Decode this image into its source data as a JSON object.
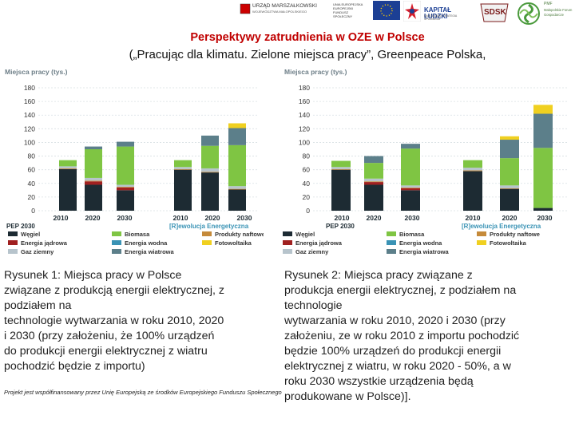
{
  "logos": {
    "left_logo_text": "URZĄD MARSZAŁKOWSKI",
    "left_logo_sub": "WOJEWÓDZTWA MAŁOPOLSKIEGO",
    "eu_text": "UNIA EUROPEJSKA EUROPEJSKI FUNDUSZ SPOŁECZNY",
    "kapital_text": "KAPITAŁ LUDZKI",
    "kapital_sub": "NARODOWA STRATEGIA SPÓJNOŚCI",
    "sdsk_text": "SDSK",
    "pmf_text": "PMF",
    "pmf_sub": "Małopolskie Forum Gospodarcze"
  },
  "title": "Perspektywy zatrudnienia w OZE w Polsce",
  "subtitle": "(„Pracując dla klimatu. Zielone miejsca pracy”, Greenpeace Polska,",
  "chart_data": [
    {
      "type": "bar",
      "title": "Miejsca pracy (tys.)",
      "stacked": true,
      "ylabel": "Miejsca pracy (tys.)",
      "ylim": [
        0,
        180
      ],
      "yticks": [
        "180",
        "160",
        "140",
        "120",
        "100",
        "80",
        "60",
        "40",
        "20",
        "0"
      ],
      "categories": [
        "2010",
        "2020",
        "2030"
      ],
      "group_labels": [
        "PEP 2030",
        "[R]ewolucja Energetyczna"
      ],
      "groups": [
        {
          "label": "PEP 2030",
          "bars": [
            {
              "year": "2010",
              "values": [
                61,
                0,
                1,
                3,
                9,
                0,
                0,
                0
              ]
            },
            {
              "year": "2020",
              "values": [
                38,
                5,
                1,
                4,
                42,
                0,
                4,
                0
              ]
            },
            {
              "year": "2030",
              "values": [
                30,
                4,
                1,
                3,
                56,
                0,
                7,
                0
              ]
            }
          ]
        },
        {
          "label": "[R]ewolucja Energetyczna",
          "bars": [
            {
              "year": "2010",
              "values": [
                60,
                0,
                1,
                3,
                10,
                0,
                0,
                0
              ]
            },
            {
              "year": "2020",
              "values": [
                56,
                0,
                1,
                5,
                33,
                0,
                15,
                0
              ]
            },
            {
              "year": "2030",
              "values": [
                31,
                0,
                1,
                4,
                60,
                0,
                25,
                7
              ]
            }
          ]
        }
      ],
      "series": [
        {
          "name": "Węgiel",
          "color": "#1d2b33"
        },
        {
          "name": "Energia jądrowa",
          "color": "#a02020"
        },
        {
          "name": "Produkty naftowe",
          "color": "#c58a3a"
        },
        {
          "name": "Gaz ziemny",
          "color": "#b7c4cc"
        },
        {
          "name": "Biomasa",
          "color": "#7fc543"
        },
        {
          "name": "Energia wodna",
          "color": "#3a93b5"
        },
        {
          "name": "Energia wiatrowa",
          "color": "#5c7f8a"
        },
        {
          "name": "Fotowoltaika",
          "color": "#f0d020"
        }
      ],
      "legend_order": [
        "Węgiel",
        "Energia jądrowa",
        "Gaz ziemny",
        "Biomasa",
        "Energia wodna",
        "Energia wiatrowa",
        "Produkty naftowe",
        "Fotowoltaika"
      ]
    },
    {
      "type": "bar",
      "title": "Miejsca pracy (tys.)",
      "stacked": true,
      "ylabel": "Miejsca pracy (tys.)",
      "ylim": [
        0,
        180
      ],
      "yticks": [
        "180",
        "160",
        "140",
        "120",
        "100",
        "80",
        "60",
        "40",
        "20",
        "0"
      ],
      "categories": [
        "2010",
        "2020",
        "2030"
      ],
      "group_labels": [
        "PEP 2030",
        "[R]ewolucja Energetyczna"
      ],
      "groups": [
        {
          "label": "PEP 2030",
          "bars": [
            {
              "year": "2010",
              "values": [
                60,
                0,
                1,
                3,
                9,
                0,
                0,
                0
              ]
            },
            {
              "year": "2020",
              "values": [
                38,
                4,
                1,
                4,
                23,
                0,
                10,
                0
              ]
            },
            {
              "year": "2030",
              "values": [
                30,
                3,
                1,
                3,
                54,
                0,
                7,
                0
              ]
            }
          ]
        },
        {
          "label": "[R]ewolucja Energetyczna",
          "bars": [
            {
              "year": "2010",
              "values": [
                58,
                0,
                1,
                4,
                11,
                0,
                0,
                0
              ]
            },
            {
              "year": "2020",
              "values": [
                32,
                0,
                1,
                4,
                40,
                0,
                27,
                5
              ]
            },
            {
              "year": "2030",
              "values": [
                4,
                0,
                0,
                0,
                88,
                0,
                50,
                13
              ]
            }
          ]
        }
      ],
      "series": [
        {
          "name": "Węgiel",
          "color": "#1d2b33"
        },
        {
          "name": "Energia jądrowa",
          "color": "#a02020"
        },
        {
          "name": "Produkty naftowe",
          "color": "#c58a3a"
        },
        {
          "name": "Gaz ziemny",
          "color": "#b7c4cc"
        },
        {
          "name": "Biomasa",
          "color": "#7fc543"
        },
        {
          "name": "Energia wodna",
          "color": "#3a93b5"
        },
        {
          "name": "Energia wiatrowa",
          "color": "#5c7f8a"
        },
        {
          "name": "Fotowoltaika",
          "color": "#f0d020"
        }
      ],
      "legend_order": [
        "Węgiel",
        "Energia jądrowa",
        "Gaz ziemny",
        "Biomasa",
        "Energia wodna",
        "Energia wiatrowa",
        "Produkty naftowe",
        "Fotowoltaika"
      ]
    }
  ],
  "captions": {
    "left_lines": [
      "Rysunek 1: Miejsca pracy w Polsce",
      "związane z produkcją energii elektrycznej, z",
      "podziałem na",
      "technologie wytwarzania w roku 2010, 2020",
      "i 2030 (przy założeniu, że 100% urządzeń",
      "do produkcji energii elektrycznej z wiatru",
      "pochodzić będzie z importu)"
    ],
    "right_lines": [
      "Rysunek 2: Miejsca pracy związane z",
      "produkcja energii elektrycznej, z podziałem na",
      "technologie",
      "wytwarzania w roku 2010, 2020 i 2030 (przy",
      "założeniu, ze w roku 2010 z importu pochodzić",
      "będzie 100% urządzeń do produkcji energii",
      "elektrycznej z wiatru, w roku 2020 - 50%, a w",
      "roku 2030 wszystkie urządzenia będą",
      "produkowane w Polsce)]."
    ]
  },
  "footer_note": "Projekt jest współfinansowany przez Unię Europejską ze środków Europejskiego Funduszu Społecznego"
}
